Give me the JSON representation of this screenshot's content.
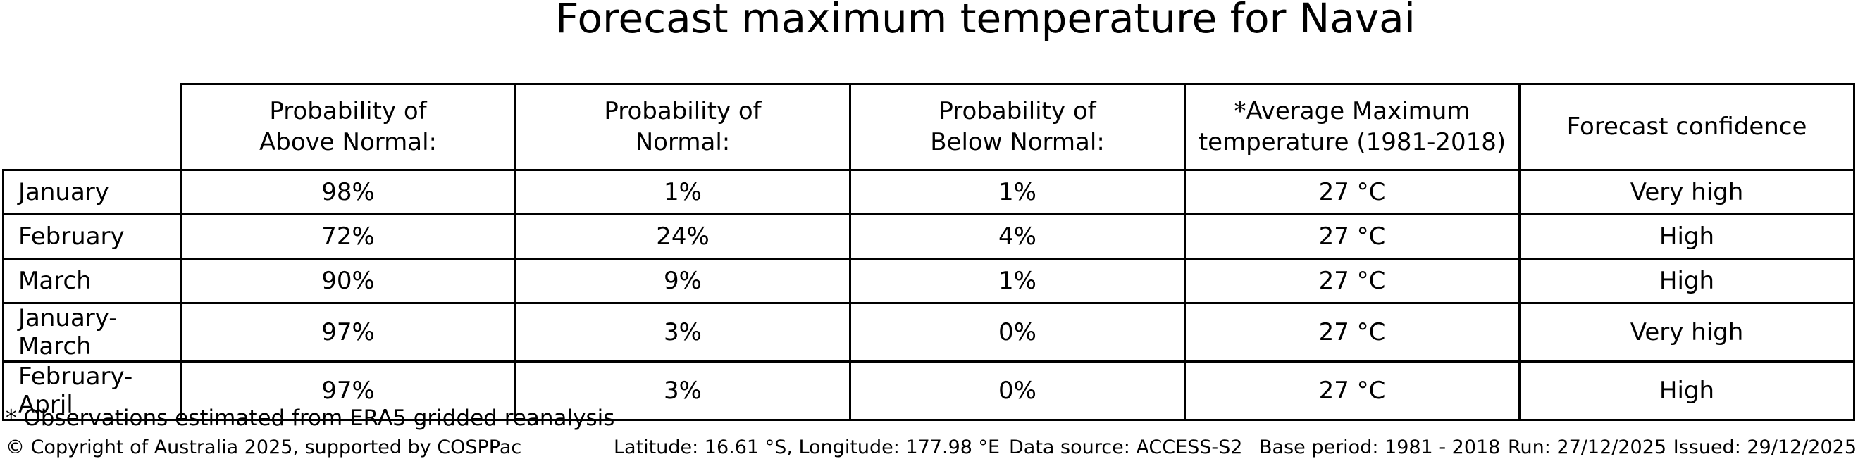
{
  "title": "Forecast maximum temperature for Navai",
  "table": {
    "headers": {
      "above": "Probability of\nAbove Normal:",
      "normal": "Probability of\nNormal:",
      "below": "Probability of\nBelow Normal:",
      "avg_temp": "*Average Maximum\ntemperature (1981-2018)",
      "confidence": "Forecast confidence"
    },
    "rows": [
      {
        "label": "January",
        "above": "98%",
        "normal": "1%",
        "below": "1%",
        "avg_temp": "27 °C",
        "confidence": "Very high"
      },
      {
        "label": "February",
        "above": "72%",
        "normal": "24%",
        "below": "4%",
        "avg_temp": "27 °C",
        "confidence": "High"
      },
      {
        "label": "March",
        "above": "90%",
        "normal": "9%",
        "below": "1%",
        "avg_temp": "27 °C",
        "confidence": "High"
      },
      {
        "label": "January-March",
        "above": "97%",
        "normal": "3%",
        "below": "0%",
        "avg_temp": "27 °C",
        "confidence": "Very high"
      },
      {
        "label": "February-April",
        "above": "97%",
        "normal": "3%",
        "below": "0%",
        "avg_temp": "27 °C",
        "confidence": "High"
      }
    ]
  },
  "footnote": "* Observations estimated from ERA5 gridded reanalysis",
  "footer": {
    "copyright": "© Copyright of Australia 2025, supported by COSPPac",
    "location": "Latitude: 16.61 °S, Longitude: 177.98 °E",
    "data_source": "Data source: ACCESS-S2",
    "base_period": "Base period: 1981 - 2018",
    "run": "Run: 27/12/2025",
    "issued": "Issued: 29/12/2025"
  },
  "colors": {
    "background": "#ffffff",
    "text": "#000000",
    "table_border": "#000000"
  }
}
